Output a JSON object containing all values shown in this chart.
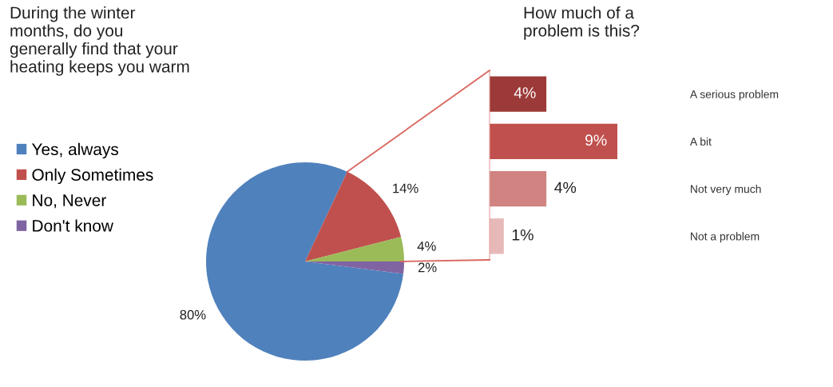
{
  "chart_data": [
    {
      "type": "pie",
      "title": "During the winter\nmonths, do you\ngenerally find that your\nheating keeps you warm",
      "categories": [
        "Yes, always",
        "Only Sometimes",
        "No, Never",
        "Don't know"
      ],
      "values": [
        80,
        14,
        4,
        2
      ],
      "colors": [
        "#4f81bd",
        "#c0504d",
        "#9bbb59",
        "#8064a2"
      ],
      "value_labels": [
        "80%",
        "14%",
        "4%",
        "2%"
      ],
      "legend": "left"
    },
    {
      "type": "bar",
      "orientation": "horizontal",
      "title": "How much of a\nproblem is this?",
      "categories": [
        "A serious problem",
        "A bit",
        "Not very much",
        "Not a problem"
      ],
      "values": [
        4,
        9,
        4,
        1
      ],
      "colors": [
        "#9b3a38",
        "#c0504d",
        "#d08381",
        "#e6b9b8"
      ],
      "value_labels": [
        "4%",
        "9%",
        "4%",
        "1%"
      ]
    }
  ]
}
